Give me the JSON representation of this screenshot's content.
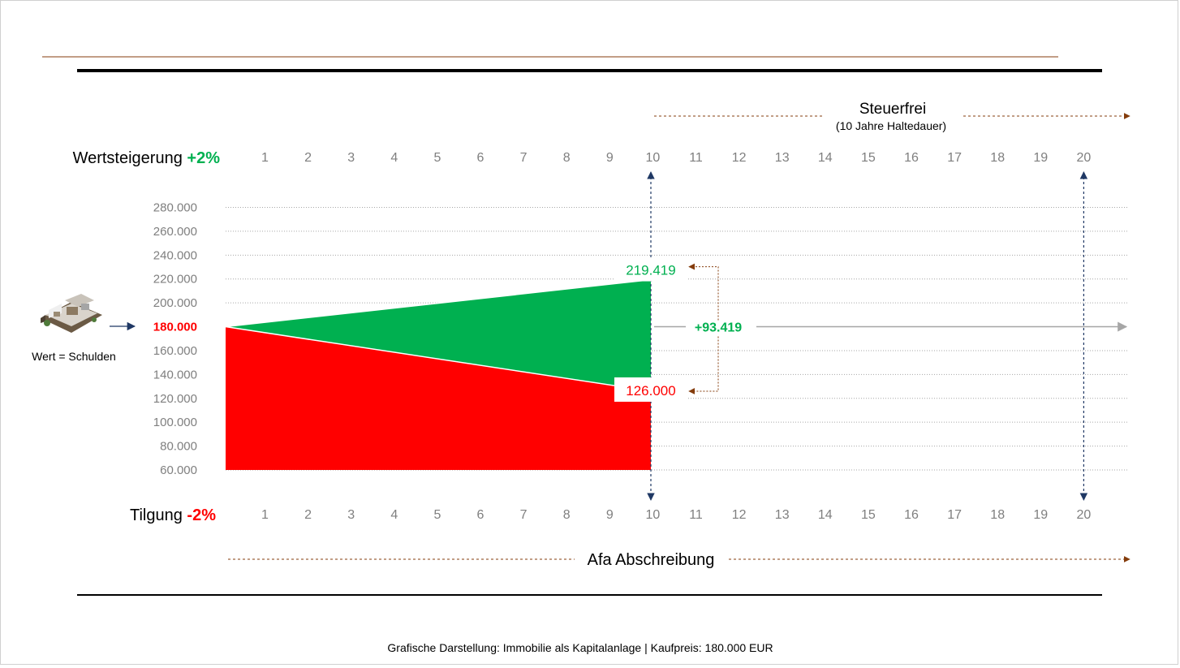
{
  "colors": {
    "gain": "#00b050",
    "debt": "#ff0000",
    "navy": "#1f3864",
    "brown": "#843c0c",
    "tick": "#7f7f7f",
    "grid": "#a6a6a6"
  },
  "chart_data": {
    "type": "area",
    "x_top_label": "Wertsteigerung",
    "x_top_rate": "+2%",
    "x_bottom_label": "Tilgung",
    "x_bottom_rate": "-2%",
    "years": [
      1,
      2,
      3,
      4,
      5,
      6,
      7,
      8,
      9,
      10,
      11,
      12,
      13,
      14,
      15,
      16,
      17,
      18,
      19,
      20
    ],
    "y_ticks": [
      280000,
      260000,
      240000,
      220000,
      200000,
      180000,
      160000,
      140000,
      120000,
      100000,
      80000,
      60000
    ],
    "y_tick_labels": [
      "280.000",
      "260.000",
      "240.000",
      "220.000",
      "200.000",
      "180.000",
      "160.000",
      "140.000",
      "120.000",
      "100.000",
      "80.000",
      "60.000"
    ],
    "ylim": [
      60000,
      280000
    ],
    "start_value": 180000,
    "start_label": "180.000",
    "series": [
      {
        "name": "Wertsteigerung",
        "color": "#00b050",
        "x": [
          0,
          10
        ],
        "values": [
          180000,
          219419
        ]
      },
      {
        "name": "Tilgung",
        "color": "#ff0000",
        "x": [
          0,
          10
        ],
        "values": [
          180000,
          126000
        ]
      }
    ],
    "end_value_label": "219.419",
    "debt_value_label": "126.000",
    "difference_label": "+93.419",
    "year_markers": [
      10,
      20
    ]
  },
  "annotations": {
    "steuerfrei": "Steuerfrei",
    "haltedauer": "(10 Jahre Haltedauer)",
    "afa": "Afa Abschreibung",
    "wert_schulden": "Wert = Schulden"
  },
  "caption": "Grafische Darstellung: Immobilie als Kapitalanlage | Kaufpreis: 180.000 EUR"
}
